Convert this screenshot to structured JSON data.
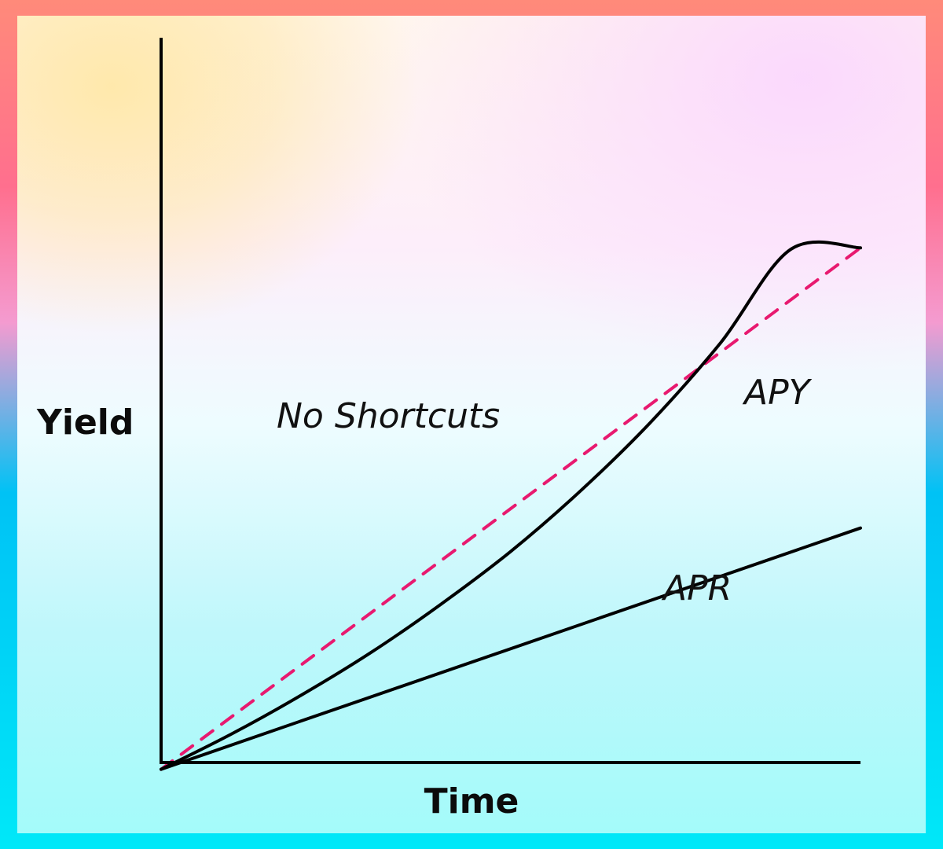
{
  "chart_data": {
    "type": "line",
    "title": "",
    "xlabel": "Time",
    "ylabel": "Yield",
    "grid": false,
    "legend": "none",
    "xlim": [
      0,
      10
    ],
    "ylim": [
      0,
      10
    ],
    "series": [
      {
        "name": "APY",
        "style": "solid",
        "color": "#000000",
        "x": [
          0,
          1,
          2,
          3,
          4,
          5,
          6,
          7,
          8,
          9,
          10
        ],
        "y": [
          0.6,
          1.05,
          1.55,
          2.1,
          2.72,
          3.4,
          4.18,
          5.06,
          6.08,
          7.28,
          7.3
        ]
      },
      {
        "name": "APR",
        "style": "solid",
        "color": "#000000",
        "x": [
          0,
          10
        ],
        "y": [
          0.6,
          3.7
        ]
      },
      {
        "name": "No Shortcuts",
        "style": "dashed",
        "color": "#e8196f",
        "x": [
          0,
          10
        ],
        "y": [
          0.6,
          7.3
        ]
      }
    ]
  }
}
